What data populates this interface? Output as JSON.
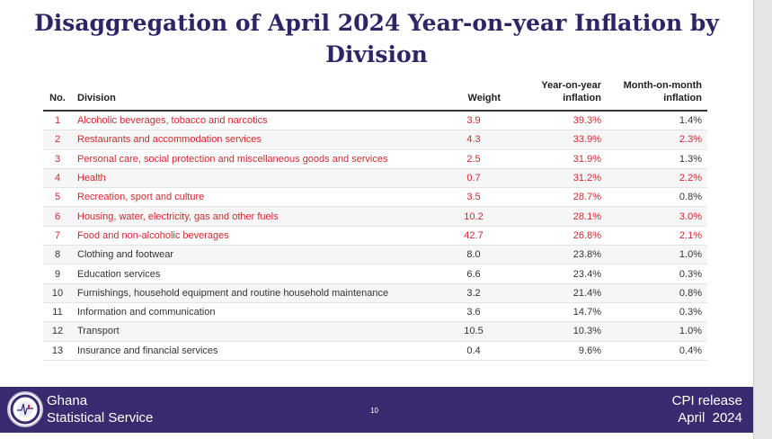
{
  "title": "Disaggregation of April 2024 Year-on-year Inflation by Division",
  "table": {
    "headers": {
      "no": "No.",
      "division": "Division",
      "weight": "Weight",
      "yoy": "Year-on-year inflation",
      "mom": "Month-on-month inflation"
    },
    "rows": [
      {
        "no": "1",
        "division": "Alcoholic beverages, tobacco and narcotics",
        "weight": "3.9",
        "yoy": "39.3%",
        "mom": "1.4%",
        "highlight": true,
        "mom_red": false
      },
      {
        "no": "2",
        "division": "Restaurants and accommodation services",
        "weight": "4.3",
        "yoy": "33.9%",
        "mom": "2.3%",
        "highlight": true,
        "mom_red": true
      },
      {
        "no": "3",
        "division": "Personal care, social protection and miscellaneous goods and services",
        "weight": "2.5",
        "yoy": "31.9%",
        "mom": "1.3%",
        "highlight": true,
        "mom_red": false
      },
      {
        "no": "4",
        "division": "Health",
        "weight": "0.7",
        "yoy": "31.2%",
        "mom": "2.2%",
        "highlight": true,
        "mom_red": true
      },
      {
        "no": "5",
        "division": "Recreation, sport and culture",
        "weight": "3.5",
        "yoy": "28.7%",
        "mom": "0.8%",
        "highlight": true,
        "mom_red": false
      },
      {
        "no": "6",
        "division": "Housing, water, electricity, gas and other fuels",
        "weight": "10.2",
        "yoy": "28.1%",
        "mom": "3.0%",
        "highlight": true,
        "mom_red": true
      },
      {
        "no": "7",
        "division": "Food and non-alcoholic beverages",
        "weight": "42.7",
        "yoy": "26.8%",
        "mom": "2.1%",
        "highlight": true,
        "mom_red": true
      },
      {
        "no": "8",
        "division": "Clothing and footwear",
        "weight": "8.0",
        "yoy": "23.8%",
        "mom": "1.0%",
        "highlight": false,
        "mom_red": false
      },
      {
        "no": "9",
        "division": "Education services",
        "weight": "6.6",
        "yoy": "23.4%",
        "mom": "0.3%",
        "highlight": false,
        "mom_red": false
      },
      {
        "no": "10",
        "division": "Furnishings, household equipment and routine household maintenance",
        "weight": "3.2",
        "yoy": "21.4%",
        "mom": "0.8%",
        "highlight": false,
        "mom_red": false
      },
      {
        "no": "11",
        "division": "Information and communication",
        "weight": "3.6",
        "yoy": "14.7%",
        "mom": "0.3%",
        "highlight": false,
        "mom_red": false
      },
      {
        "no": "12",
        "division": "Transport",
        "weight": "10.5",
        "yoy": "10.3%",
        "mom": "1.0%",
        "highlight": false,
        "mom_red": false
      },
      {
        "no": "13",
        "division": "Insurance and financial services",
        "weight": "0.4",
        "yoy": "9.6%",
        "mom": "0.4%",
        "highlight": false,
        "mom_red": false
      }
    ]
  },
  "footer": {
    "org_line1": "Ghana",
    "org_line2": "Statistical Service",
    "logo_text": "Ghana Statistical Service",
    "page": "10",
    "release_line1": "CPI release",
    "release_line2": "April  2024"
  },
  "colors": {
    "accent": "#2e2466",
    "footer_bg": "#3a2a70",
    "highlight": "#d0292f"
  }
}
